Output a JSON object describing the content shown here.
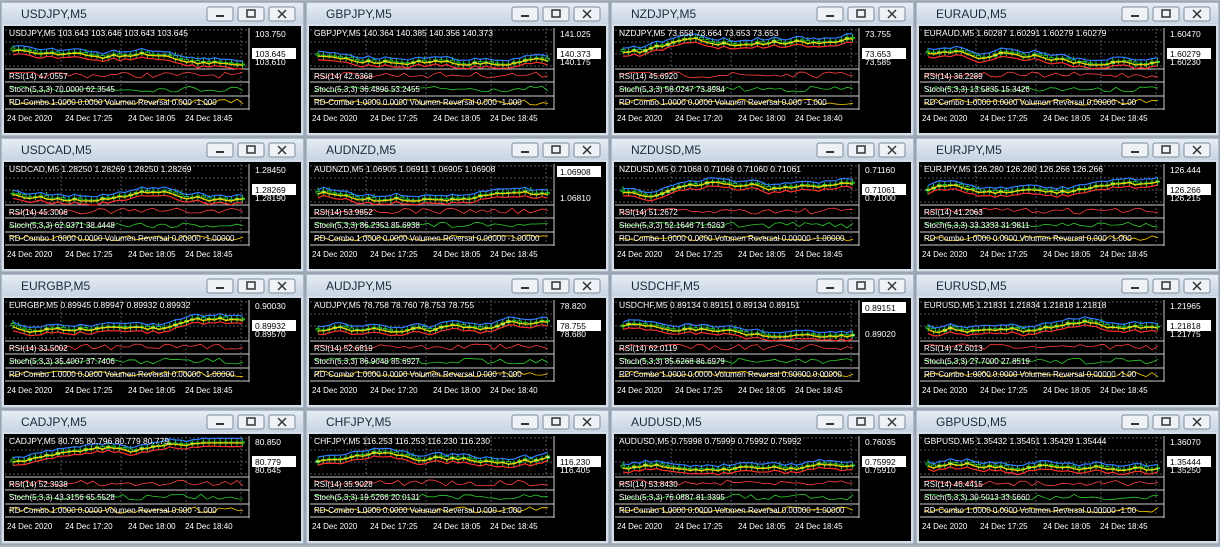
{
  "windows": [
    {
      "title": "USDJPY,M5",
      "header": "USDJPY,M5 103.643 103.646 103.643 103.645",
      "scale": [
        "103.750",
        "103.610"
      ],
      "bid": "103.645",
      "rsi": "RSI(14) 47.0557",
      "stoch": "Stoch(5,3,3) 70.0000 62.3545",
      "rd": "RD-Combo 1.0000 0.0000 Volumen Reversal 0.000 -1.000",
      "times": [
        "24 Dec 2020",
        "24 Dec 17:25",
        "24 Dec 18:05",
        "24 Dec 18:45"
      ]
    },
    {
      "title": "GBPJPY,M5",
      "header": "GBPJPY,M5 140.364 140.385 140.356 140.373",
      "scale": [
        "141.025",
        "140.175"
      ],
      "bid": "140.373",
      "rsi": "RSI(14) 42.6368",
      "stoch": "Stoch(5,3,3) 36.4896 53.2455",
      "rd": "RD-Combo 1.0000 0.0000 Volumen Reversal 0.000 -1.000",
      "times": [
        "24 Dec 2020",
        "24 Dec 17:25",
        "24 Dec 18:05",
        "24 Dec 18:45"
      ]
    },
    {
      "title": "NZDJPY,M5",
      "header": "NZDJPY,M5 73.658 73.664 73.653 73.653",
      "scale": [
        "73.755",
        "73.585"
      ],
      "bid": "73.653",
      "rsi": "RSI(14) 45.6920",
      "stoch": "Stoch(5,3,3) 58.0247 73.8984",
      "rd": "RD-Combo 1.0000 0.0000 Volumen Reversal 0.000 -1.000",
      "times": [
        "24 Dec 2020",
        "24 Dec 17:20",
        "24 Dec 18:00",
        "24 Dec 18:40"
      ]
    },
    {
      "title": "EURAUD,M5",
      "header": "EURAUD,M5 1.60287 1.60291 1.60279 1.60279",
      "scale": [
        "1.60470",
        "1.60230"
      ],
      "bid": "1.60279",
      "rsi": "RSI(14) 36.2289",
      "stoch": "Stoch(5,3,3) 13.5835 15.3426",
      "rd": "RD-Combo 1.0000 0.0000 Volumen Reversal 0.00000 -1.00",
      "times": [
        "24 Dec 2020",
        "24 Dec 17:25",
        "24 Dec 18:05",
        "24 Dec 18:45"
      ]
    },
    {
      "title": "USDCAD,M5",
      "header": "USDCAD,M5 1.28250 1.28269 1.28250 1.28269",
      "scale": [
        "1.28450",
        "1.28190"
      ],
      "bid": "1.28269",
      "rsi": "RSI(14) 45.3006",
      "stoch": "Stoch(5,3,3) 62.9371 38.4448",
      "rd": "RD-Combo 1.0000 0.0000 Volumen Reversal 0.00000 -1.00000",
      "times": [
        "24 Dec 2020",
        "24 Dec 17:25",
        "24 Dec 18:05",
        "24 Dec 18:45"
      ]
    },
    {
      "title": "AUDNZD,M5",
      "header": "AUDNZD,M5 1.06905 1.06911 1.06905 1.06908",
      "scale": [
        "1.06810"
      ],
      "bid": "1.06908",
      "rsi": "RSI(14) 53.9852",
      "stoch": "Stoch(5,3,3) 86.2353 85.6938",
      "rd": "RD-Combo 1.0000 0.0000 Volumen Reversal 0.00000 -1.00000",
      "times": [
        "24 Dec 2020",
        "24 Dec 17:25",
        "24 Dec 18:05",
        "24 Dec 18:45"
      ]
    },
    {
      "title": "NZDUSD,M5",
      "header": "NZDUSD,M5 0.71068 0.71068 0.71060 0.71061",
      "scale": [
        "0.71160",
        "0.71000"
      ],
      "bid": "0.71061",
      "rsi": "RSI(14) 51.2672",
      "stoch": "Stoch(5,3,3) 52.1646 71.6263",
      "rd": "RD-Combo 1.0000 0.0000 Volumen Reversal 0.00000 -1.00000",
      "times": [
        "24 Dec 2020",
        "24 Dec 17:25",
        "24 Dec 18:05",
        "24 Dec 18:45"
      ]
    },
    {
      "title": "EURJPY,M5",
      "header": "EURJPY,M5 126.280 126.280 126.266 126.266",
      "scale": [
        "126.444",
        "126.215"
      ],
      "bid": "126.266",
      "rsi": "RSI(14) 41.2063",
      "stoch": "Stoch(5,3,3) 33.3333 31.9811",
      "rd": "RD-Combo 1.0000 0.0000 Volumen Reversal 0.000 -1.000",
      "times": [
        "24 Dec 2020",
        "24 Dec 17:25",
        "24 Dec 18:05",
        "24 Dec 18:45"
      ]
    },
    {
      "title": "EURGBP,M5",
      "header": "EURGBP,M5 0.89945 0.89947 0.89932 0.89932",
      "scale": [
        "0.90030",
        "0.89570"
      ],
      "bid": "0.89932",
      "rsi": "RSI(14) 33.5002",
      "stoch": "Stoch(5,3,3) 35.4007 37.7406",
      "rd": "RD-Combo 1.0000 0.0000 Volumen Reversal 0.00000 -1.00000",
      "times": [
        "24 Dec 2020",
        "24 Dec 17:25",
        "24 Dec 18:05",
        "24 Dec 18:45"
      ]
    },
    {
      "title": "AUDJPY,M5",
      "header": "AUDJPY,M5 78.758 78.760 78.753 78.755",
      "scale": [
        "78.820",
        "78.680"
      ],
      "bid": "78.755",
      "rsi": "RSI(14) 52.6819",
      "stoch": "Stoch(5,3,3) 86.9048 85.6927",
      "rd": "RD-Combo 1.0000 0.0000 Volumen Reversal 0.000 -1.000",
      "times": [
        "24 Dec 2020",
        "24 Dec 17:20",
        "24 Dec 18:00",
        "24 Dec 18:40"
      ]
    },
    {
      "title": "USDCHF,M5",
      "header": "USDCHF,M5 0.89134 0.89151 0.89134 0.89151",
      "scale": [
        "0.89020"
      ],
      "bid": "0.89151",
      "rsi": "RSI(14) 62.0119",
      "stoch": "Stoch(5,3,3) 85.6268 86.6979",
      "rd": "RD-Combo 1.0000 0.0000 Volumen Reversal 0.00000 0.00000",
      "times": [
        "24 Dec 2020",
        "24 Dec 17:25",
        "24 Dec 18:05",
        "24 Dec 18:45"
      ]
    },
    {
      "title": "EURUSD,M5",
      "header": "EURUSD,M5 1.21831 1.21834 1.21818 1.21818",
      "scale": [
        "1.21965",
        "1.21775"
      ],
      "bid": "1.21818",
      "rsi": "RSI(14) 42.6013",
      "stoch": "Stoch(5,3,3) 27.7000 27.8519",
      "rd": "RD-Combo 1.0000 0.0000 Volumen Reversal 0.00000 -1.00",
      "times": [
        "24 Dec 2020",
        "24 Dec 17:25",
        "24 Dec 18:05",
        "24 Dec 18:45"
      ]
    },
    {
      "title": "CADJPY,M5",
      "header": "CADJPY,M5 80.795 80.796 80.779 80.779",
      "scale": [
        "80.850",
        "80.645"
      ],
      "bid": "80.779",
      "rsi": "RSI(14) 52.3938",
      "stoch": "Stoch(5,3,3) 43.3156 65.5528",
      "rd": "RD-Combo 1.0000 0.0000 Volumen Reversal 0.000 -1.000",
      "times": [
        "24 Dec 2020",
        "24 Dec 17:20",
        "24 Dec 18:00",
        "24 Dec 18:40"
      ]
    },
    {
      "title": "CHFJPY,M5",
      "header": "CHFJPY,M5 116.253 116.253 116.230 116.230",
      "scale": [
        "116.405"
      ],
      "bid": "116.230",
      "rsi": "RSI(14) 35.9028",
      "stoch": "Stoch(5,3,3) 19.5266 20.0131",
      "rd": "RD-Combo 1.0000 0.0000 Volumen Reversal 0.000 -1.000",
      "times": [
        "24 Dec 2020",
        "24 Dec 17:25",
        "24 Dec 18:05",
        "24 Dec 18:45"
      ]
    },
    {
      "title": "AUDUSD,M5",
      "header": "AUDUSD,M5 0.75998 0.75999 0.75992 0.75992",
      "scale": [
        "0.76035",
        "0.75910"
      ],
      "bid": "0.75992",
      "rsi": "RSI(14) 53.8430",
      "stoch": "Stoch(5,3,3) 76.0887 81.3395",
      "rd": "RD-Combo 1.0000 0.0000 Volumen Reversal 0.00000 -1.00000",
      "times": [
        "24 Dec 2020",
        "24 Dec 17:25",
        "24 Dec 18:05",
        "24 Dec 18:45"
      ]
    },
    {
      "title": "GBPUSD,M5",
      "header": "GBPUSD,M5 1.35432 1.35451 1.35429 1.35444",
      "scale": [
        "1.36070",
        "1.35250"
      ],
      "bid": "1.35444",
      "rsi": "RSI(14) 46.4415",
      "stoch": "Stoch(5,3,3) 30.5013 33.5660",
      "rd": "RD-Combo 1.0000 0.0000 Volumen Reversal 0.00000 -1.00",
      "times": [
        "24 Dec 2020",
        "24 Dec 17:25",
        "24 Dec 18:05",
        "24 Dec 18:45"
      ]
    }
  ]
}
